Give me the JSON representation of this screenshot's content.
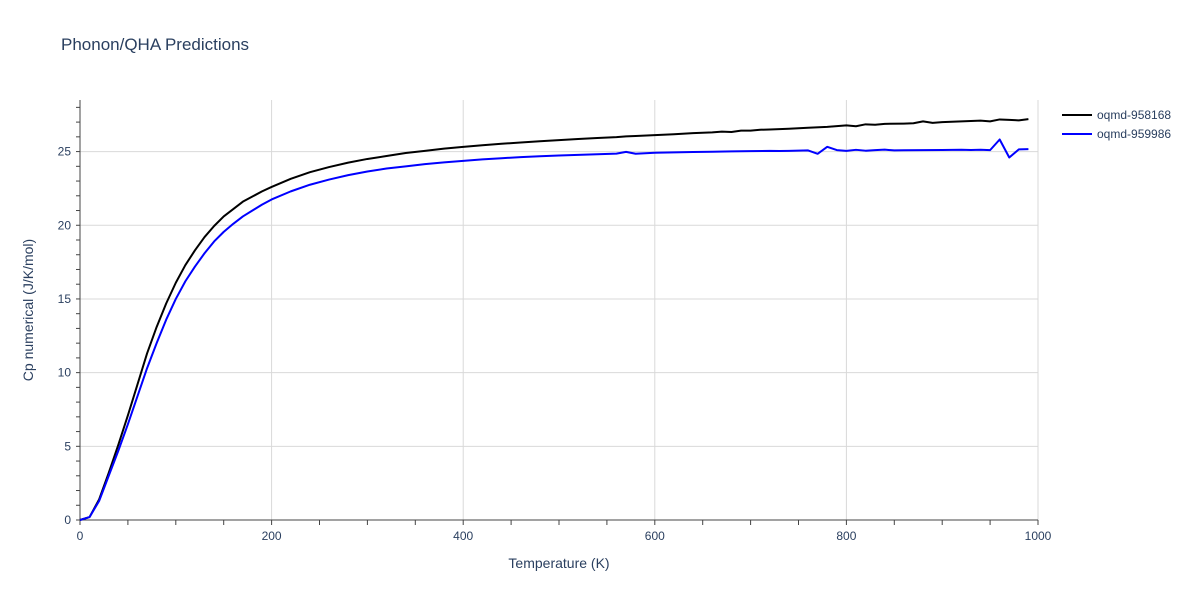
{
  "chart_data": {
    "type": "line",
    "title": "Phonon/QHA Predictions",
    "xlabel": "Temperature (K)",
    "ylabel": "Cp numerical (J/K/mol)",
    "xlim": [
      0,
      1000
    ],
    "ylim": [
      0,
      28.5
    ],
    "xticks": [
      0,
      200,
      400,
      600,
      800,
      1000
    ],
    "yticks": [
      0,
      5,
      10,
      15,
      20,
      25
    ],
    "grid": true,
    "legend_position": "top-right",
    "series": [
      {
        "name": "oqmd-958168",
        "color": "#000000",
        "x": [
          0,
          10,
          20,
          30,
          40,
          50,
          60,
          70,
          80,
          90,
          100,
          110,
          120,
          130,
          140,
          150,
          160,
          170,
          180,
          190,
          200,
          220,
          240,
          260,
          280,
          300,
          320,
          340,
          360,
          380,
          400,
          420,
          440,
          460,
          480,
          500,
          520,
          540,
          560,
          570,
          580,
          600,
          620,
          640,
          660,
          670,
          680,
          690,
          700,
          710,
          720,
          740,
          760,
          780,
          800,
          810,
          820,
          830,
          840,
          860,
          870,
          880,
          890,
          900,
          920,
          940,
          950,
          960,
          970,
          980,
          990
        ],
        "y": [
          0,
          0.2,
          1.4,
          3.2,
          5.1,
          7.1,
          9.2,
          11.3,
          13.1,
          14.7,
          16.1,
          17.3,
          18.3,
          19.2,
          19.95,
          20.6,
          21.1,
          21.6,
          21.95,
          22.3,
          22.6,
          23.15,
          23.6,
          23.95,
          24.25,
          24.5,
          24.7,
          24.9,
          25.05,
          25.2,
          25.32,
          25.43,
          25.53,
          25.62,
          25.7,
          25.78,
          25.85,
          25.92,
          25.98,
          26.03,
          26.06,
          26.12,
          26.18,
          26.25,
          26.3,
          26.35,
          26.33,
          26.42,
          26.42,
          26.48,
          26.5,
          26.55,
          26.62,
          26.68,
          26.78,
          26.72,
          26.85,
          26.82,
          26.88,
          26.9,
          26.92,
          27.05,
          26.95,
          27.0,
          27.05,
          27.1,
          27.05,
          27.18,
          27.15,
          27.12,
          27.2
        ]
      },
      {
        "name": "oqmd-959986",
        "color": "#0000ff",
        "x": [
          0,
          10,
          20,
          30,
          40,
          50,
          60,
          70,
          80,
          90,
          100,
          110,
          120,
          130,
          140,
          150,
          160,
          170,
          180,
          190,
          200,
          220,
          240,
          260,
          280,
          300,
          320,
          340,
          360,
          380,
          400,
          420,
          440,
          460,
          480,
          500,
          520,
          540,
          560,
          570,
          580,
          600,
          620,
          640,
          660,
          680,
          700,
          720,
          730,
          740,
          760,
          770,
          780,
          790,
          800,
          810,
          820,
          830,
          840,
          850,
          860,
          880,
          900,
          920,
          930,
          940,
          950,
          960,
          970,
          980,
          990
        ],
        "y": [
          0,
          0.2,
          1.3,
          3.0,
          4.7,
          6.5,
          8.4,
          10.3,
          12.0,
          13.6,
          15.0,
          16.2,
          17.2,
          18.1,
          18.9,
          19.55,
          20.1,
          20.6,
          21.0,
          21.4,
          21.75,
          22.3,
          22.75,
          23.1,
          23.4,
          23.65,
          23.85,
          24.0,
          24.15,
          24.27,
          24.37,
          24.47,
          24.55,
          24.62,
          24.68,
          24.73,
          24.78,
          24.82,
          24.86,
          24.98,
          24.85,
          24.92,
          24.95,
          24.97,
          24.99,
          25.01,
          25.03,
          25.05,
          25.04,
          25.05,
          25.08,
          24.85,
          25.32,
          25.1,
          25.05,
          25.12,
          25.06,
          25.1,
          25.13,
          25.08,
          25.09,
          25.1,
          25.11,
          25.12,
          25.11,
          25.12,
          25.1,
          25.82,
          24.6,
          25.15,
          25.17
        ]
      }
    ]
  }
}
